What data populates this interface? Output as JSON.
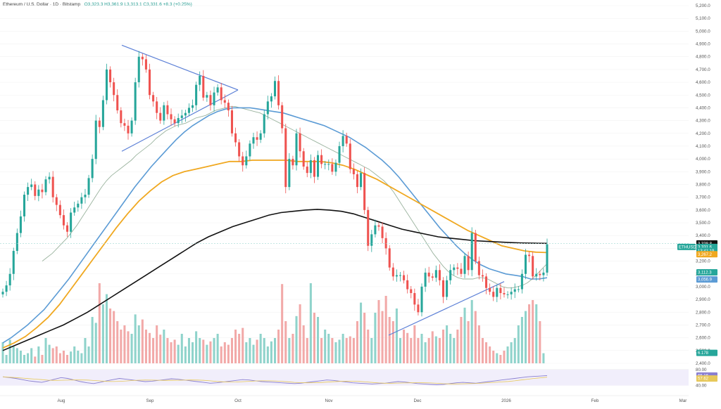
{
  "header": {
    "symbol": "Ethereum / U.S. Dollar · 1D · Bitstamp",
    "ohlc": "O3,323.3  H3,361.9  L3,313.1  C3,331.6  +8.3 (+0.25%)"
  },
  "colors": {
    "up": "#26a69a",
    "down": "#ef5350",
    "sma20": "#9ab39e",
    "sma50": "#5b9bd5",
    "sma100": "#f0a820",
    "sma200": "#111111",
    "trendline": "#5b7fd6",
    "vol_up": "#8fd3cb",
    "vol_down": "#f2a9a8",
    "rsi": "#8a7fd0",
    "rsi_ma": "#e7c85a"
  },
  "chart_data": {
    "type": "candlestick",
    "title": "Ethereum / U.S. Dollar · 1D · Bitstamp",
    "ylim": [
      2400,
      5200
    ],
    "y_ticks": [
      "5,200.0",
      "5,100.0",
      "5,000.0",
      "4,900.0",
      "4,800.0",
      "4,700.0",
      "4,600.0",
      "4,500.0",
      "4,400.0",
      "4,300.0",
      "4,200.0",
      "4,100.0",
      "4,000.0",
      "3,900.0",
      "3,800.0",
      "3,700.0",
      "3,600.0",
      "3,500.0",
      "3,400.0",
      "3,300.0",
      "3,200.0",
      "3,100.0",
      "3,000.0",
      "2,900.0",
      "2,800.0",
      "2,700.0",
      "2,600.0",
      "2,500.0",
      "2,400.0"
    ],
    "x_ticks": [
      "Aug",
      "Sep",
      "Oct",
      "Nov",
      "Dec",
      "2026",
      "Feb",
      "Mar"
    ],
    "price_tags": [
      {
        "label": "3,338.8",
        "value": 3338.8,
        "color": "#111111"
      },
      {
        "label": "3,331.6",
        "value": 3311.0,
        "color": "#26a69a"
      },
      {
        "label": "13:41:19",
        "value": 3280.0,
        "color": "#26a69a"
      },
      {
        "label": "3,267.2",
        "value": 3254.0,
        "color": "#f0a820"
      },
      {
        "label": "3,112.3",
        "value": 3112.3,
        "color": "#26a69a"
      },
      {
        "label": "3,056.9",
        "value": 3056.9,
        "color": "#5b9bd5"
      },
      {
        "label": "6.178",
        "value": 2482.0,
        "color": "#26a69a"
      }
    ],
    "symbol_tag": "ETHUSD",
    "closes": [
      2960,
      3010,
      3100,
      3280,
      3420,
      3550,
      3720,
      3780,
      3800,
      3710,
      3760,
      3740,
      3840,
      3860,
      3700,
      3640,
      3560,
      3480,
      3430,
      3580,
      3620,
      3650,
      3700,
      3720,
      3850,
      4000,
      4300,
      4250,
      4460,
      4700,
      4600,
      4500,
      4380,
      4280,
      4260,
      4200,
      4300,
      4600,
      4800,
      4780,
      4700,
      4500,
      4450,
      4360,
      4300,
      4420,
      4350,
      4310,
      4280,
      4320,
      4340,
      4360,
      4400,
      4420,
      4580,
      4650,
      4480,
      4500,
      4420,
      4520,
      4560,
      4460,
      4440,
      4380,
      4200,
      4130,
      4020,
      3950,
      4020,
      4120,
      4170,
      4150,
      4200,
      4350,
      4450,
      4490,
      4610,
      4420,
      4240,
      3780,
      4000,
      3950,
      4200,
      4060,
      3940,
      3890,
      3990,
      3860,
      4030,
      3960,
      3960,
      3960,
      3900,
      3970,
      4100,
      4180,
      4120,
      3920,
      3880,
      3780,
      3890,
      3600,
      3320,
      3410,
      3480,
      3470,
      3380,
      3300,
      3150,
      3080,
      3090,
      3090,
      3050,
      2980,
      2950,
      2860,
      2800,
      3000,
      3110,
      3080,
      3070,
      3130,
      3050,
      2920,
      3050,
      3130,
      3150,
      3140,
      3100,
      3240,
      3130,
      3420,
      3200,
      3090,
      3080,
      2990,
      2960,
      2920,
      2990,
      2950,
      2940,
      2940,
      2960,
      2980,
      2980,
      3100,
      3250,
      3240,
      3080,
      3100,
      3090,
      3110,
      3331.6
    ],
    "sma20": [
      3200,
      3230,
      3260,
      3300,
      3340,
      3380,
      3430,
      3480,
      3540,
      3600,
      3660,
      3720,
      3780,
      3830,
      3870,
      3900,
      3930,
      3960,
      3990,
      4030,
      4060,
      4090,
      4120,
      4160,
      4190,
      4220,
      4240,
      4260,
      4270,
      4280,
      4300,
      4320,
      4330,
      4340,
      4360,
      4380,
      4390,
      4400,
      4410,
      4410,
      4400,
      4390,
      4380,
      4370,
      4360,
      4340,
      4320,
      4300,
      4280,
      4260,
      4240,
      4220,
      4200,
      4180,
      4160,
      4140,
      4120,
      4100,
      4080,
      4060,
      4040,
      4020,
      4000,
      3980,
      3960,
      3940,
      3920,
      3890,
      3860,
      3830,
      3790,
      3740,
      3680,
      3620,
      3560,
      3500,
      3440,
      3380,
      3320,
      3260,
      3210,
      3160,
      3120,
      3090,
      3070,
      3060,
      3060,
      3060,
      3070,
      3070,
      3060,
      3040,
      3020,
      3000,
      2990,
      2990,
      3000,
      3010,
      3030,
      3060,
      3100,
      3140,
      3180
    ],
    "sma50": [
      2560,
      2600,
      2650,
      2700,
      2760,
      2820,
      2900,
      2980,
      3060,
      3150,
      3240,
      3330,
      3420,
      3510,
      3600,
      3690,
      3780,
      3860,
      3940,
      4010,
      4080,
      4150,
      4210,
      4260,
      4300,
      4340,
      4370,
      4390,
      4400,
      4400,
      4400,
      4390,
      4380,
      4370,
      4360,
      4340,
      4320,
      4300,
      4280,
      4260,
      4230,
      4200,
      4170,
      4130,
      4090,
      4040,
      3990,
      3930,
      3860,
      3780,
      3700,
      3620,
      3540,
      3460,
      3390,
      3320,
      3260,
      3210,
      3170,
      3140,
      3120,
      3100,
      3090,
      3080,
      3060,
      3060,
      3070
    ],
    "sma100": [
      2520,
      2560,
      2610,
      2680,
      2760,
      2860,
      2980,
      3100,
      3220,
      3340,
      3460,
      3570,
      3670,
      3750,
      3820,
      3870,
      3900,
      3920,
      3940,
      3960,
      3980,
      3980,
      3990,
      3990,
      3990,
      3990,
      3980,
      3980,
      3980,
      3970,
      3950,
      3920,
      3880,
      3840,
      3790,
      3740,
      3690,
      3640,
      3590,
      3540,
      3490,
      3440,
      3400,
      3360,
      3320,
      3300,
      3280,
      3270,
      3267.2
    ],
    "sma200": [
      2500,
      2540,
      2580,
      2620,
      2660,
      2700,
      2750,
      2800,
      2860,
      2920,
      2980,
      3040,
      3100,
      3160,
      3220,
      3280,
      3340,
      3390,
      3430,
      3470,
      3500,
      3530,
      3560,
      3580,
      3590,
      3600,
      3605,
      3600,
      3590,
      3570,
      3540,
      3510,
      3480,
      3450,
      3430,
      3410,
      3390,
      3380,
      3370,
      3360,
      3355,
      3350,
      3345,
      3342,
      3340,
      3338.8
    ],
    "volume": [
      0.25,
      0.1,
      0.28,
      0.2,
      0.18,
      0.15,
      0.1,
      0.12,
      0.18,
      0.08,
      0.2,
      0.1,
      0.3,
      0.22,
      0.18,
      0.2,
      0.12,
      0.15,
      0.1,
      0.14,
      0.2,
      0.15,
      0.12,
      0.3,
      0.2,
      0.55,
      0.48,
      0.95,
      0.7,
      0.82,
      0.65,
      0.62,
      0.5,
      0.4,
      0.45,
      0.38,
      0.35,
      0.58,
      0.45,
      0.52,
      0.4,
      0.36,
      0.3,
      0.45,
      0.34,
      0.4,
      0.3,
      0.25,
      0.28,
      0.22,
      0.35,
      0.2,
      0.3,
      0.25,
      0.38,
      0.3,
      0.28,
      0.22,
      0.26,
      0.3,
      0.35,
      0.2,
      0.25,
      0.22,
      0.3,
      0.4,
      0.35,
      0.42,
      0.25,
      0.3,
      0.22,
      0.28,
      0.35,
      0.3,
      0.2,
      0.26,
      0.3,
      0.4,
      0.94,
      0.5,
      0.3,
      0.35,
      0.56,
      0.7,
      0.45,
      0.3,
      0.95,
      0.6,
      0.55,
      0.3,
      0.4,
      0.35,
      0.3,
      0.25,
      0.28,
      0.35,
      0.3,
      0.32,
      0.3,
      0.5,
      0.72,
      0.6,
      0.4,
      0.3,
      0.6,
      0.75,
      0.62,
      0.8,
      0.55,
      0.5,
      0.65,
      0.3,
      0.4,
      0.36,
      0.3,
      0.45,
      0.3,
      0.35,
      0.25,
      0.3,
      0.38,
      0.32,
      0.3,
      0.4,
      0.45,
      0.35,
      0.3,
      0.4,
      0.55,
      0.66,
      0.5,
      0.75,
      0.62,
      0.45,
      0.3,
      0.25,
      0.2,
      0.15,
      0.12,
      0.1,
      0.15,
      0.2,
      0.25,
      0.3,
      0.45,
      0.55,
      0.62,
      0.7,
      0.75,
      0.7,
      0.5,
      0.12
    ],
    "rsi": [
      62,
      60,
      58,
      55,
      52,
      50,
      48,
      52,
      56,
      60,
      58,
      54,
      50,
      47,
      45,
      48,
      52,
      55,
      58,
      56,
      54,
      52,
      50,
      51,
      53,
      55,
      57,
      56,
      54,
      52,
      50,
      48,
      46,
      47,
      49,
      51,
      53,
      55,
      54,
      52,
      50,
      49,
      48,
      47,
      46,
      45,
      46,
      48,
      50,
      52,
      54,
      53,
      51,
      49,
      47,
      46,
      45,
      44,
      45,
      46,
      48,
      50,
      49,
      47,
      45,
      44,
      43,
      42,
      43,
      45,
      47,
      48,
      47,
      46,
      48,
      50,
      52,
      54,
      56,
      58,
      60,
      62,
      63,
      64,
      65.16
    ]
  },
  "rsi_panel": {
    "ticks": [
      "80.00",
      "40.00"
    ],
    "tag_rsi": "65.16",
    "tag_ma": "57.62"
  }
}
